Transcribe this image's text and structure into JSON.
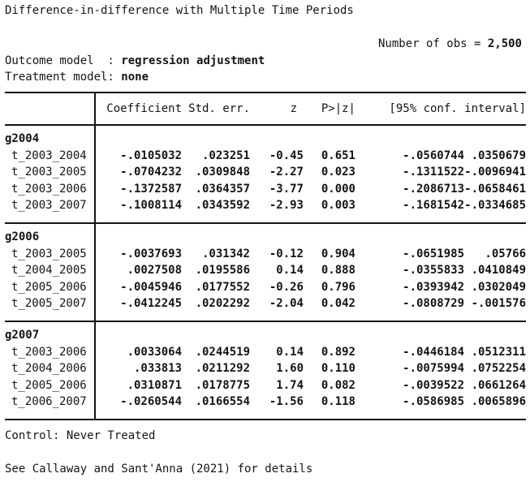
{
  "header": {
    "title": "Difference-in-difference with Multiple Time Periods",
    "obs_label": "Number of obs = ",
    "obs_value": "2,500",
    "outcome_label": "Outcome model  : ",
    "outcome_value": "regression adjustment",
    "treatment_label": "Treatment model: ",
    "treatment_value": "none"
  },
  "table": {
    "columns": {
      "coef": "Coefficient",
      "std_err": "Std. err.",
      "z": "z",
      "p": "P>|z|",
      "ci": "[95% conf. interval]"
    },
    "groups": [
      {
        "name": "g2004",
        "rows": [
          {
            "label": "t_2003_2004",
            "coef": "-.0105032",
            "std_err": ".023251",
            "z": "-0.45",
            "p": "0.651",
            "ci_low": "-.0560744",
            "ci_high": ".0350679"
          },
          {
            "label": "t_2003_2005",
            "coef": "-.0704232",
            "std_err": ".0309848",
            "z": "-2.27",
            "p": "0.023",
            "ci_low": "-.1311522",
            "ci_high": "-.0096941"
          },
          {
            "label": "t_2003_2006",
            "coef": "-.1372587",
            "std_err": ".0364357",
            "z": "-3.77",
            "p": "0.000",
            "ci_low": "-.2086713",
            "ci_high": "-.0658461"
          },
          {
            "label": "t_2003_2007",
            "coef": "-.1008114",
            "std_err": ".0343592",
            "z": "-2.93",
            "p": "0.003",
            "ci_low": "-.1681542",
            "ci_high": "-.0334685"
          }
        ]
      },
      {
        "name": "g2006",
        "rows": [
          {
            "label": "t_2003_2005",
            "coef": "-.0037693",
            "std_err": ".031342",
            "z": "-0.12",
            "p": "0.904",
            "ci_low": "-.0651985",
            "ci_high": ".05766"
          },
          {
            "label": "t_2004_2005",
            "coef": ".0027508",
            "std_err": ".0195586",
            "z": "0.14",
            "p": "0.888",
            "ci_low": "-.0355833",
            "ci_high": ".0410849"
          },
          {
            "label": "t_2005_2006",
            "coef": "-.0045946",
            "std_err": ".0177552",
            "z": "-0.26",
            "p": "0.796",
            "ci_low": "-.0393942",
            "ci_high": ".0302049"
          },
          {
            "label": "t_2005_2007",
            "coef": "-.0412245",
            "std_err": ".0202292",
            "z": "-2.04",
            "p": "0.042",
            "ci_low": "-.0808729",
            "ci_high": "-.001576"
          }
        ]
      },
      {
        "name": "g2007",
        "rows": [
          {
            "label": "t_2003_2006",
            "coef": ".0033064",
            "std_err": ".0244519",
            "z": "0.14",
            "p": "0.892",
            "ci_low": "-.0446184",
            "ci_high": ".0512311"
          },
          {
            "label": "t_2004_2006",
            "coef": ".033813",
            "std_err": ".0211292",
            "z": "1.60",
            "p": "0.110",
            "ci_low": "-.0075994",
            "ci_high": ".0752254"
          },
          {
            "label": "t_2005_2006",
            "coef": ".0310871",
            "std_err": ".0178775",
            "z": "1.74",
            "p": "0.082",
            "ci_low": "-.0039522",
            "ci_high": ".0661264"
          },
          {
            "label": "t_2006_2007",
            "coef": "-.0260544",
            "std_err": ".0166554",
            "z": "-1.56",
            "p": "0.118",
            "ci_low": "-.0586985",
            "ci_high": ".0065896"
          }
        ]
      }
    ]
  },
  "footer": {
    "control": "Control: Never Treated",
    "reference": "See Callaway and Sant'Anna (2021) for details"
  }
}
